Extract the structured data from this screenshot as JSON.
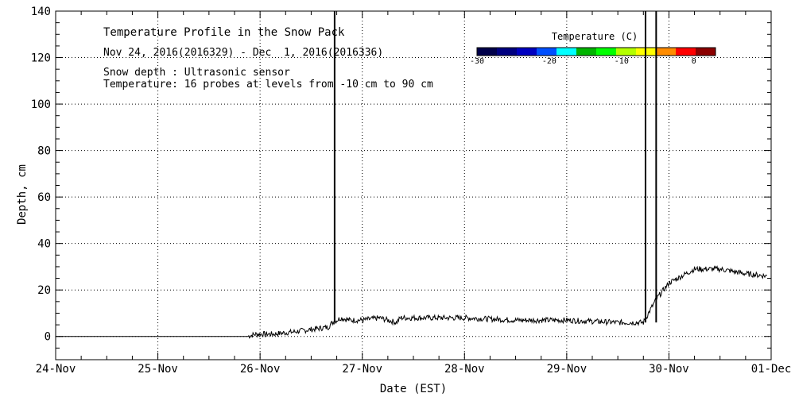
{
  "chart_data": {
    "type": "line",
    "title": "Temperature Profile in the Snow Pack",
    "subtitle": "Nov 24, 2016(2016329) - Dec  1, 2016(2016336)",
    "annotations": [
      "Snow depth : Ultrasonic sensor",
      "Temperature: 16 probes at levels from -10 cm to 90 cm"
    ],
    "xlabel": "Date (EST)",
    "ylabel": "Depth, cm",
    "xlim": [
      "2016-11-24",
      "2016-12-01"
    ],
    "ylim": [
      -10,
      140
    ],
    "x_ticks": [
      "24-Nov",
      "25-Nov",
      "26-Nov",
      "27-Nov",
      "28-Nov",
      "29-Nov",
      "30-Nov",
      "01-Dec"
    ],
    "y_ticks": [
      0,
      20,
      40,
      60,
      80,
      100,
      120,
      140
    ],
    "grid": true,
    "legend": {
      "title": "Temperature (C)",
      "range": [
        -30,
        3
      ],
      "tick_labels": [
        "-30",
        "-20",
        "-10",
        "0"
      ],
      "tick_values": [
        -30,
        -20,
        -10,
        0
      ],
      "colors": [
        "#00004a",
        "#000080",
        "#0000c0",
        "#0050ff",
        "#00ffff",
        "#00b400",
        "#00ff00",
        "#b4ff00",
        "#ffff00",
        "#ff8c00",
        "#ff0000",
        "#8b0000"
      ],
      "placement": "top-right"
    },
    "series": [
      {
        "name": "Snow depth",
        "x": [
          "2016-11-24 00:00",
          "2016-11-25 21:00",
          "2016-11-25 23:00",
          "2016-11-26 03:00",
          "2016-11-26 08:00",
          "2016-11-26 12:00",
          "2016-11-26 16:00",
          "2016-11-26 17:00",
          "2016-11-26 19:00",
          "2016-11-26 21:00",
          "2016-11-27 00:00",
          "2016-11-27 04:00",
          "2016-11-27 08:00",
          "2016-11-27 09:00",
          "2016-11-28 00:00",
          "2016-11-28 12:00",
          "2016-11-29 00:00",
          "2016-11-29 12:00",
          "2016-11-29 18:00",
          "2016-11-29 21:00",
          "2016-11-30 00:00",
          "2016-11-30 06:00",
          "2016-11-30 12:00",
          "2016-11-30 18:00",
          "2016-11-30 23:00"
        ],
        "y": [
          0,
          0,
          1,
          1,
          2,
          3,
          4,
          6,
          8,
          7,
          7,
          8,
          6,
          8,
          8,
          7,
          7,
          6,
          6,
          16,
          23,
          29,
          29,
          27,
          26
        ]
      }
    ],
    "spikes": [
      {
        "x": "2016-11-26 17:30",
        "y": 140
      },
      {
        "x": "2016-11-29 18:30",
        "y": 140
      },
      {
        "x": "2016-11-29 21:00",
        "y": 140
      }
    ]
  }
}
